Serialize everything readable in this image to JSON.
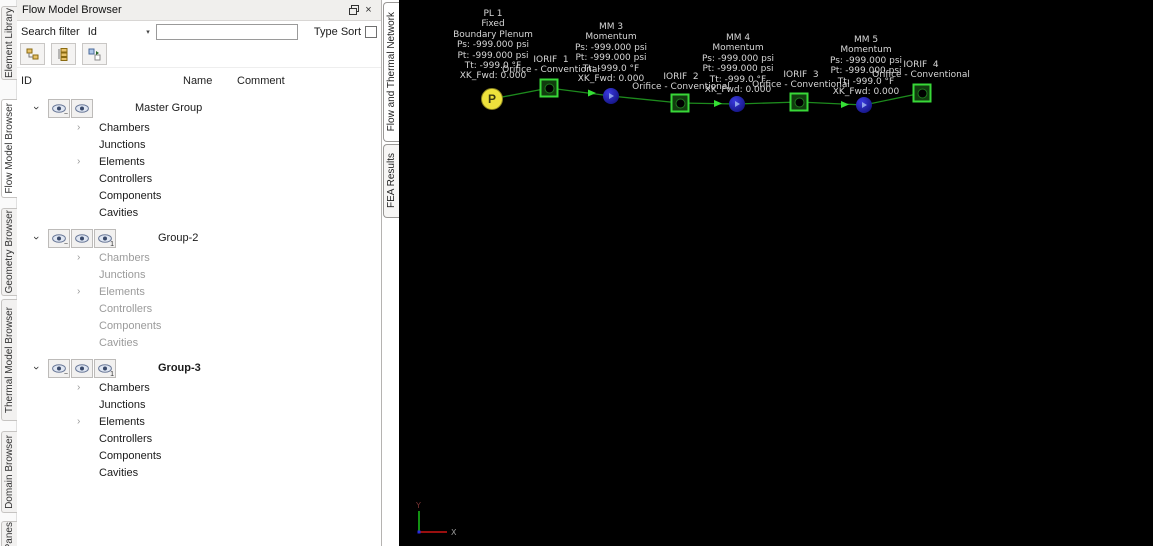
{
  "left_tabs": [
    "Element Library",
    "Flow Model Browser",
    "Geometry Browser",
    "Thermal Model Browser",
    "Domain Browser",
    "Panes"
  ],
  "panel": {
    "title": "Flow Model Browser",
    "close_glyph": "×",
    "search_label": "Search filter",
    "search_field_selected": "Id",
    "search_value": "",
    "type_sort_label": "Type Sort",
    "columns": [
      "ID",
      "Name",
      "Comment"
    ]
  },
  "tree": {
    "groups": [
      {
        "label": "Master Group",
        "children": [
          "Chambers",
          "Junctions",
          "Elements",
          "Controllers",
          "Components",
          "Cavities"
        ]
      },
      {
        "label": "Group-2",
        "children": [
          "Chambers",
          "Junctions",
          "Elements",
          "Controllers",
          "Components",
          "Cavities"
        ]
      },
      {
        "label": "Group-3",
        "children": [
          "Chambers",
          "Junctions",
          "Elements",
          "Controllers",
          "Components",
          "Cavities"
        ]
      }
    ]
  },
  "canvas_tabs": [
    "Flow and Thermal Network",
    "FEA Results"
  ],
  "network": {
    "plenum_symbol": "P",
    "labels": [
      {
        "lines": [
          "PL 1",
          "Fixed",
          "Boundary Plenum",
          "Ps: -999.000 psi",
          "Pt: -999.000 psi",
          "Tt: -999.0 °F",
          "XK_Fwd: 0.000"
        ]
      },
      {
        "lines": [
          "IORIF  1",
          "Orifice - Conventional"
        ]
      },
      {
        "lines": [
          "MM 3",
          "Momentum",
          "Ps: -999.000 psi",
          "Pt: -999.000 psi",
          "Tt: -999.0 °F",
          "XK_Fwd: 0.000"
        ]
      },
      {
        "lines": [
          "IORIF  2",
          "Orifice - Conventional"
        ]
      },
      {
        "lines": [
          "MM 4",
          "Momentum",
          "Ps: -999.000 psi",
          "Pt: -999.000 psi",
          "Tt: -999.0 °F",
          "XK_Fwd: 0.000"
        ]
      },
      {
        "lines": [
          "IORIF  3",
          "Orifice - Conventional"
        ]
      },
      {
        "lines": [
          "MM 5",
          "Momentum",
          "Ps: -999.000 psi",
          "Pt: -999.000 psi",
          "Tt: -999.0 °F",
          "XK_Fwd: 0.000"
        ]
      },
      {
        "lines": [
          "IORIF  4",
          "Orifice - Conventional"
        ]
      }
    ],
    "triad": {
      "x_label": "X",
      "y_label": "Y"
    },
    "colors": {
      "wire_green": "#1d8a1d",
      "element_green": "#38d838",
      "momentum_blue": "#1c1cbe",
      "plenum_yellow": "#eee23c",
      "label_gray": "#d6d6d6"
    }
  }
}
